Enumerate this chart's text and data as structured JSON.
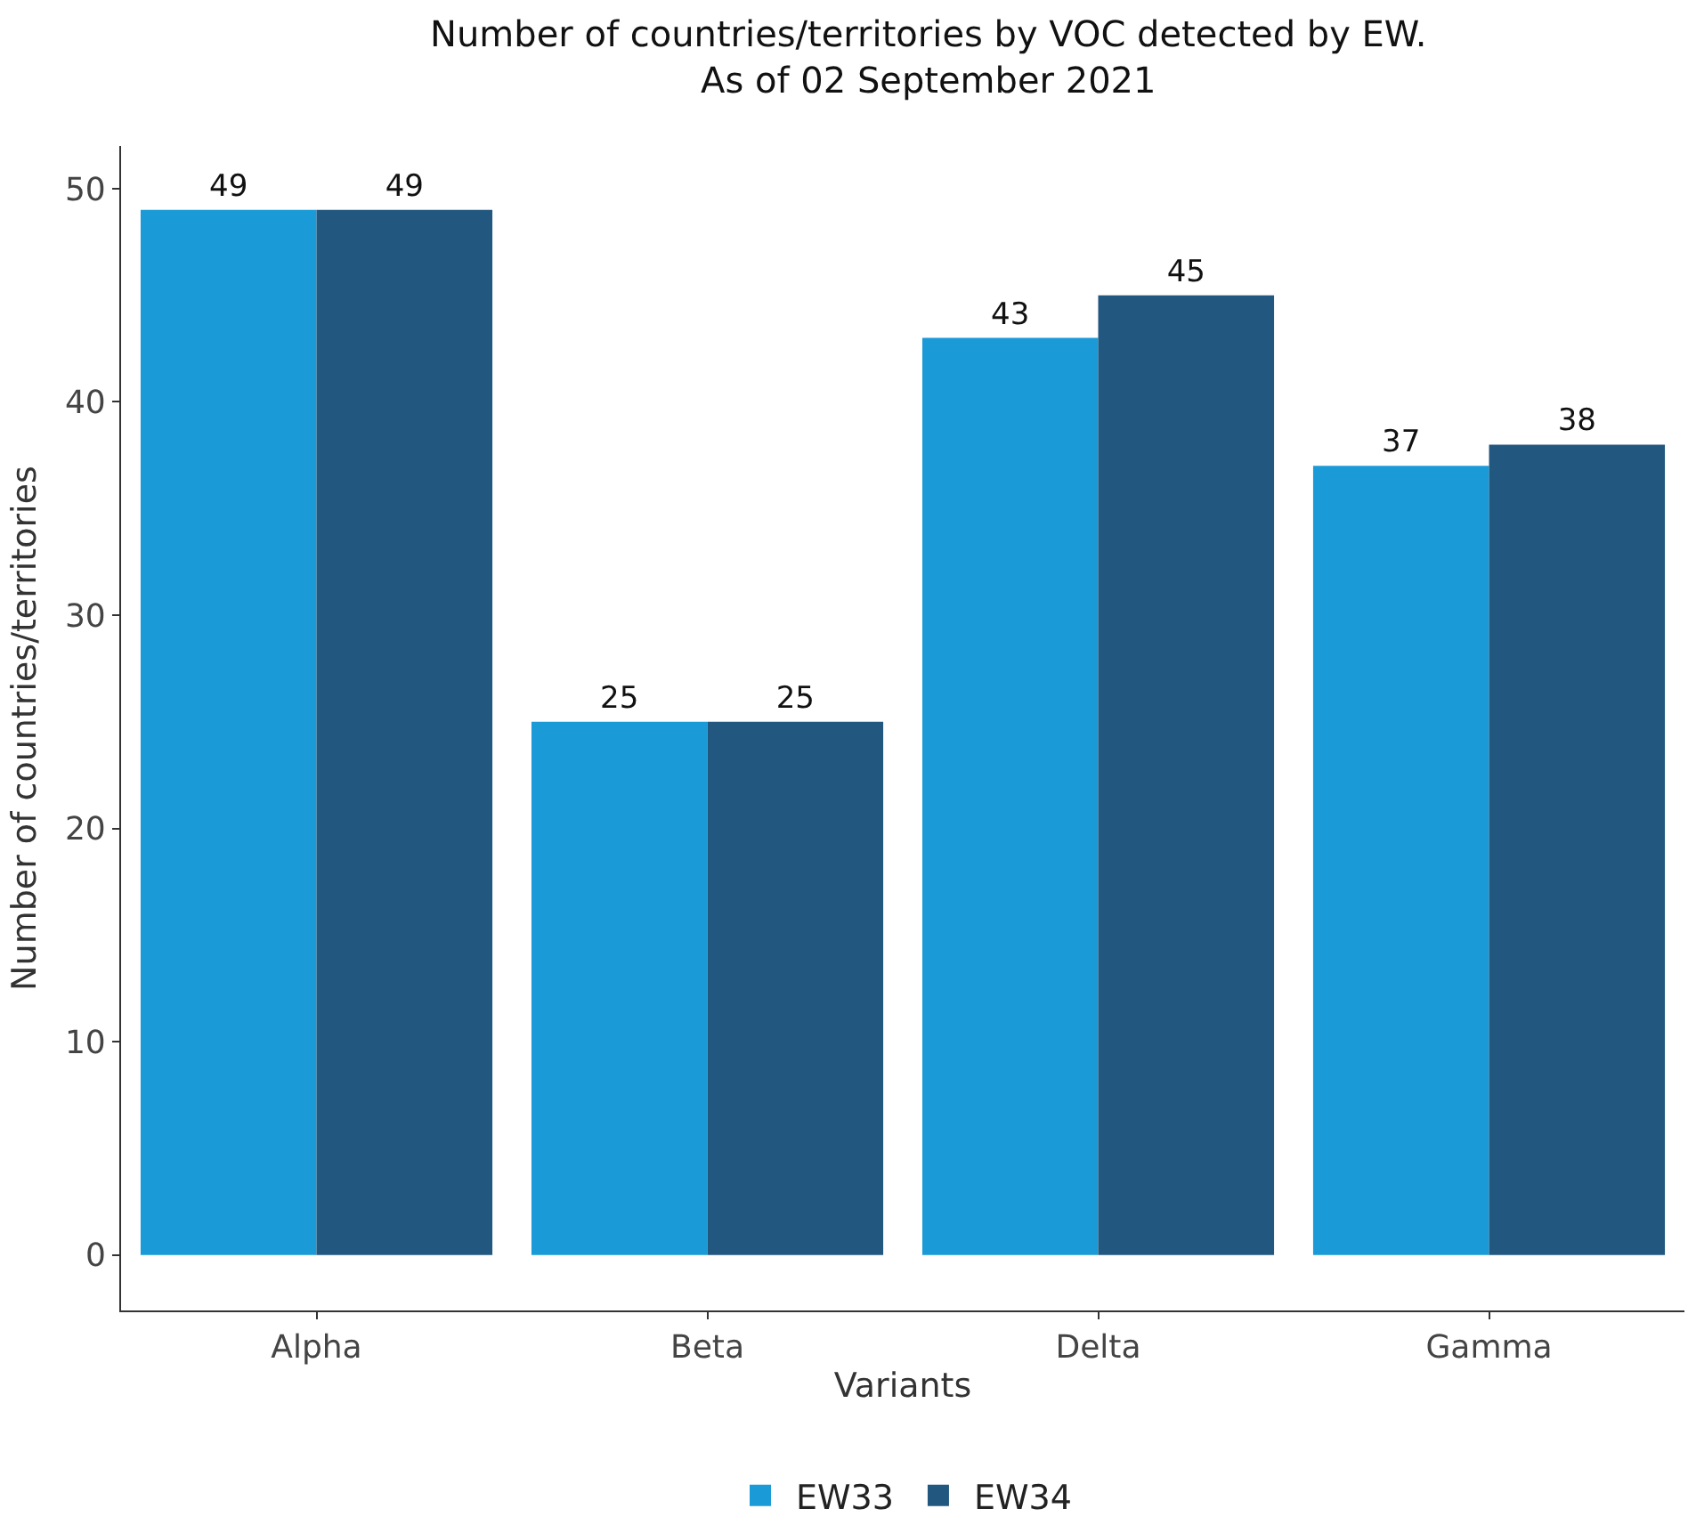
{
  "chart_data": {
    "type": "bar",
    "title": "Number of countries/territories by VOC detected by EW.\nAs of 02 September 2021",
    "xlabel": "Variants",
    "ylabel": "Number of countries/territories",
    "categories": [
      "Alpha",
      "Beta",
      "Delta",
      "Gamma"
    ],
    "series": [
      {
        "name": "EW33",
        "color": "#1a9ad6",
        "values": [
          49,
          25,
          43,
          37
        ]
      },
      {
        "name": "EW34",
        "color": "#22577f",
        "values": [
          49,
          25,
          45,
          38
        ]
      }
    ],
    "ylim": [
      -2.6,
      52
    ],
    "yticks": [
      0,
      10,
      20,
      30,
      40,
      50
    ],
    "grid": false,
    "legend": "bottom",
    "data_labels": true
  }
}
